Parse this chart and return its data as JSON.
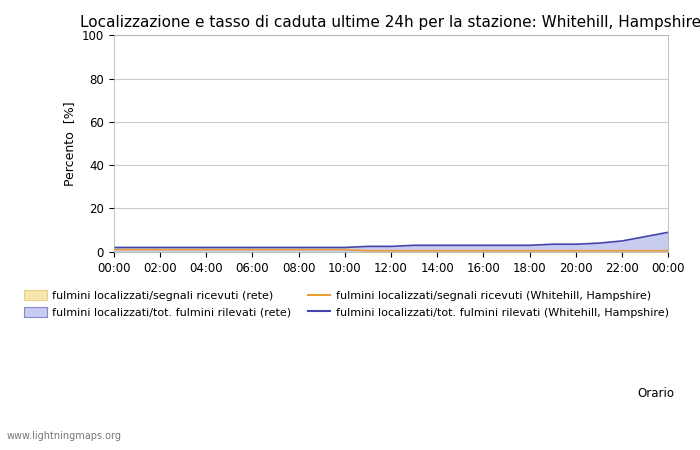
{
  "title": "Localizzazione e tasso di caduta ultime 24h per la stazione: Whitehill, Hampshire",
  "ylabel": "Percento  [%]",
  "xlabel": "Orario",
  "ylim": [
    0,
    100
  ],
  "yticks": [
    0,
    20,
    40,
    60,
    80,
    100
  ],
  "xtick_labels": [
    "00:00",
    "02:00",
    "04:00",
    "06:00",
    "08:00",
    "10:00",
    "12:00",
    "14:00",
    "16:00",
    "18:00",
    "20:00",
    "22:00",
    "00:00"
  ],
  "x_values": [
    0,
    1,
    2,
    3,
    4,
    5,
    6,
    7,
    8,
    9,
    10,
    11,
    12,
    13,
    14,
    15,
    16,
    17,
    18,
    19,
    20,
    21,
    22,
    23,
    24
  ],
  "fill_yellow": [
    1.0,
    1.0,
    1.0,
    1.0,
    1.0,
    1.0,
    1.0,
    1.0,
    1.0,
    1.0,
    1.0,
    0.5,
    0.5,
    0.5,
    0.5,
    0.5,
    0.5,
    0.5,
    0.5,
    0.5,
    0.5,
    0.5,
    0.5,
    0.5,
    0.5
  ],
  "fill_blue": [
    2.0,
    2.0,
    2.0,
    2.0,
    2.0,
    2.0,
    2.0,
    2.0,
    2.0,
    2.0,
    2.0,
    2.5,
    2.5,
    3.0,
    3.0,
    3.0,
    3.0,
    3.0,
    3.0,
    3.5,
    3.5,
    4.0,
    5.0,
    7.0,
    9.0
  ],
  "line_orange": [
    1.0,
    1.0,
    1.0,
    1.0,
    1.0,
    1.0,
    1.0,
    1.0,
    1.0,
    1.0,
    1.0,
    0.5,
    0.5,
    0.5,
    0.5,
    0.5,
    0.5,
    0.5,
    0.5,
    0.5,
    0.5,
    0.5,
    0.5,
    0.5,
    0.5
  ],
  "line_blue": [
    2.0,
    2.0,
    2.0,
    2.0,
    2.0,
    2.0,
    2.0,
    2.0,
    2.0,
    2.0,
    2.0,
    2.5,
    2.5,
    3.0,
    3.0,
    3.0,
    3.0,
    3.0,
    3.0,
    3.5,
    3.5,
    4.0,
    5.0,
    7.0,
    9.0
  ],
  "fill_yellow_color": "#f5e6b0",
  "fill_yellow_edge": "#e8d080",
  "fill_blue_color": "#c8ccf0",
  "fill_blue_edge": "#8888cc",
  "line_orange_color": "#e8a030",
  "line_blue_color": "#4444aa",
  "bg_color": "#ffffff",
  "plot_bg_color": "#ffffff",
  "grid_color": "#cccccc",
  "legend1_label": "fulmini localizzati/segnali ricevuti (rete)",
  "legend2_label": "fulmini localizzati/tot. fulmini rilevati (rete)",
  "legend3_label": "fulmini localizzati/segnali ricevuti (Whitehill, Hampshire)",
  "legend4_label": "fulmini localizzati/tot. fulmini rilevati (Whitehill, Hampshire)",
  "watermark": "www.lightningmaps.org",
  "title_fontsize": 11,
  "axis_fontsize": 9,
  "tick_fontsize": 8.5,
  "legend_fontsize": 8
}
